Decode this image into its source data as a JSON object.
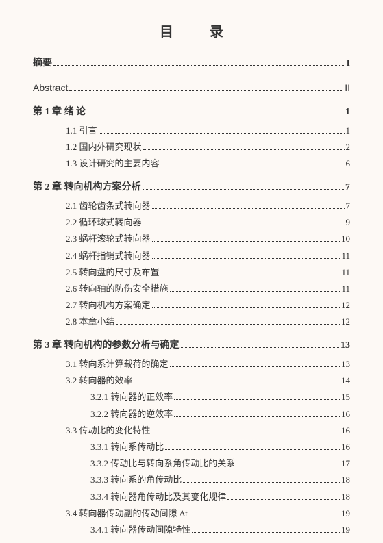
{
  "title": "目 录",
  "entries": [
    {
      "level": "top first",
      "label": "摘要",
      "page": "I"
    },
    {
      "level": "abstract",
      "label": "Abstract",
      "page": "II"
    },
    {
      "level": "top",
      "label": "第 1 章  绪  论",
      "page": "1"
    },
    {
      "level": "indent-1",
      "label": "1.1 引言",
      "page": "1"
    },
    {
      "level": "indent-1",
      "label": "1.2 国内外研究现状",
      "page": "2"
    },
    {
      "level": "indent-1",
      "label": "1.3 设计研究的主要内容",
      "page": "6"
    },
    {
      "level": "top",
      "label": "第 2 章   转向机构方案分析",
      "page": "7"
    },
    {
      "level": "indent-1",
      "label": "2.1 齿轮齿条式转向器",
      "page": "7"
    },
    {
      "level": "indent-1",
      "label": "2.2 循环球式转向器",
      "page": "9"
    },
    {
      "level": "indent-1",
      "label": "2.3 蜗杆滚轮式转向器",
      "page": "10"
    },
    {
      "level": "indent-1",
      "label": "2.4 蜗杆指销式转向器",
      "page": "11"
    },
    {
      "level": "indent-1",
      "label": "2.5 转向盘的尺寸及布置",
      "page": "11"
    },
    {
      "level": "indent-1",
      "label": "2.6 转向轴的防伤安全措施",
      "page": "11"
    },
    {
      "level": "indent-1",
      "label": "2.7 转向机构方案确定",
      "page": "12"
    },
    {
      "level": "indent-1",
      "label": "2.8 本章小结",
      "page": "12"
    },
    {
      "level": "top",
      "label": "第 3 章   转向机构的参数分析与确定",
      "page": "13"
    },
    {
      "level": "indent-1",
      "label": "3.1 转向系计算载荷的确定",
      "page": "13"
    },
    {
      "level": "indent-1",
      "label": "3.2 转向器的效率",
      "page": "14"
    },
    {
      "level": "indent-2",
      "label": "3.2.1 转向器的正效率",
      "page": "15"
    },
    {
      "level": "indent-2",
      "label": "3.2.2 转向器的逆效率",
      "page": "16"
    },
    {
      "level": "indent-1",
      "label": "3.3 传动比的变化特性",
      "page": "16"
    },
    {
      "level": "indent-2",
      "label": "3.3.1 转向系传动比",
      "page": "16"
    },
    {
      "level": "indent-2",
      "label": "3.3.2 传动比与转向系角传动比的关系",
      "page": "17"
    },
    {
      "level": "indent-2",
      "label": "3.3.3 转向系的角传动比",
      "page": "18"
    },
    {
      "level": "indent-2",
      "label": "3.3.4 转向器角传动比及其变化规律",
      "page": "18"
    },
    {
      "level": "indent-1",
      "label": "3.4  转向器传动副的传动间隙 Δt",
      "page": "19"
    },
    {
      "level": "indent-2",
      "label": "3.4.1 转向器传动间隙特性",
      "page": "19"
    }
  ]
}
